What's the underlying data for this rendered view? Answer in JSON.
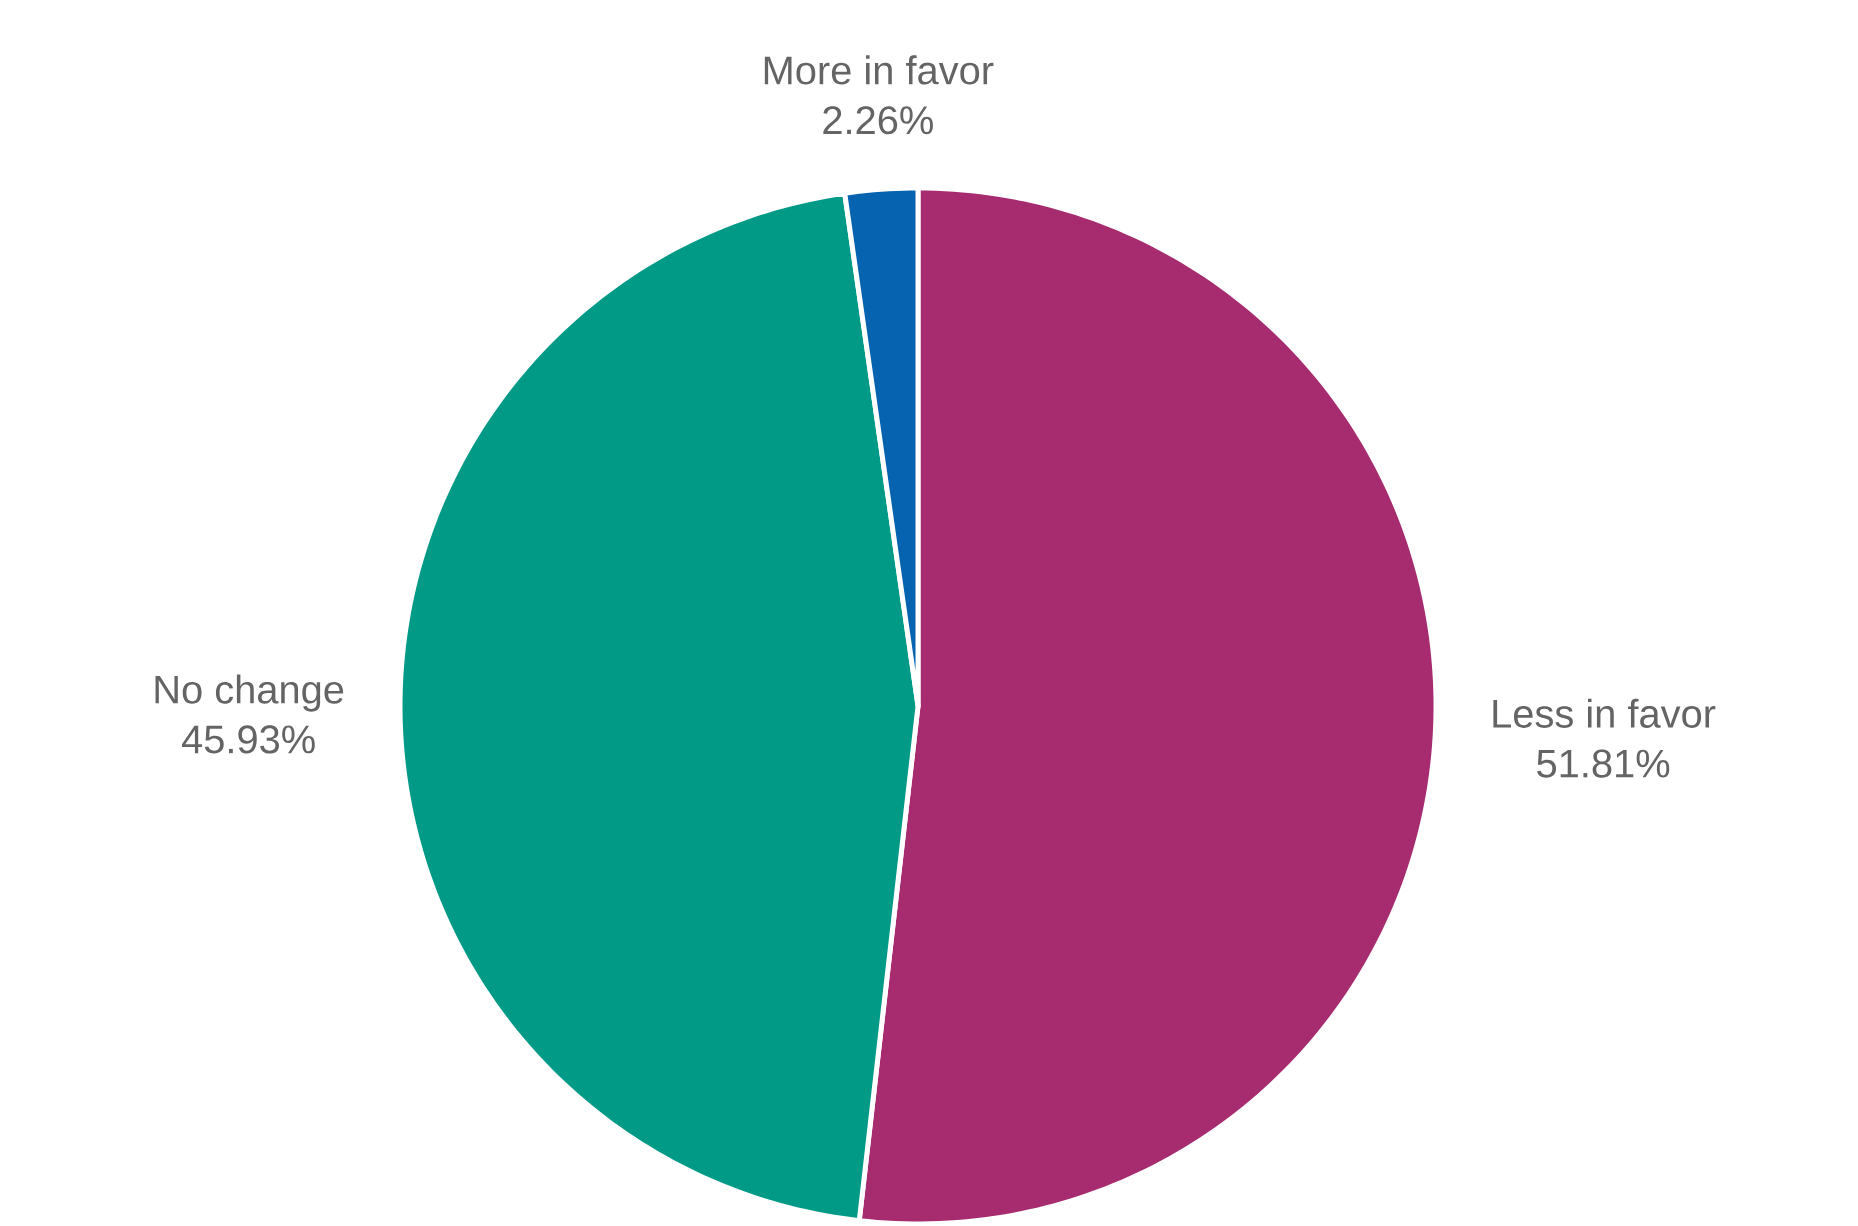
{
  "chart_data": {
    "type": "pie",
    "categories": [
      "Less in favor",
      "No change",
      "More in favor"
    ],
    "values": [
      51.81,
      45.93,
      2.26
    ],
    "colors": [
      "#a62b6f",
      "#009a87",
      "#0563b0"
    ],
    "value_labels": [
      "51.81%",
      "45.93%",
      "2.26%"
    ]
  }
}
